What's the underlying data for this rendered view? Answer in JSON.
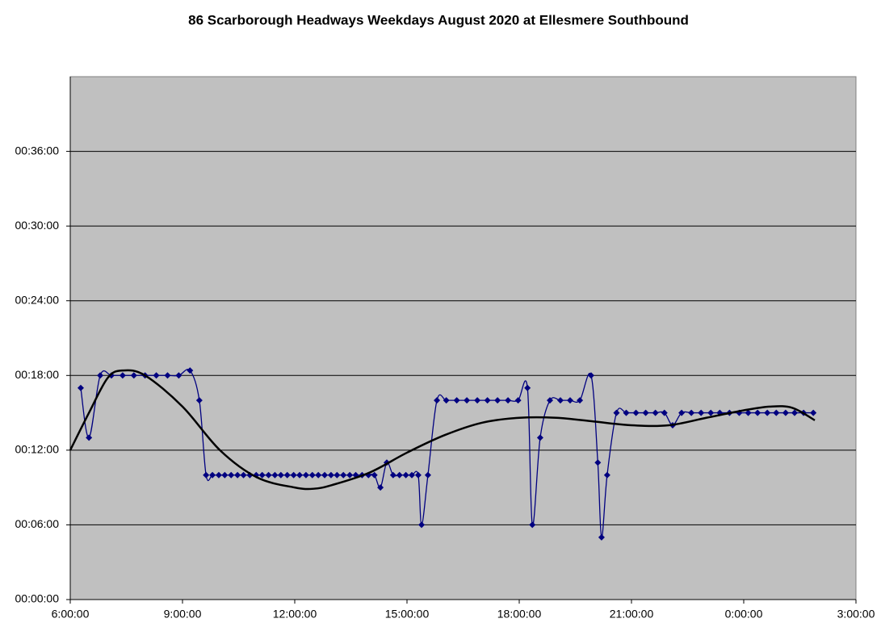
{
  "chart_data": {
    "type": "line",
    "title": "86 Scarborough Headways Weekdays August 2020 at Ellesmere Southbound",
    "xlim": [
      6,
      27
    ],
    "xticks": [
      {
        "value": 6,
        "label": "6:00:00"
      },
      {
        "value": 9,
        "label": "9:00:00"
      },
      {
        "value": 12,
        "label": "12:00:00"
      },
      {
        "value": 15,
        "label": "15:00:00"
      },
      {
        "value": 18,
        "label": "18:00:00"
      },
      {
        "value": 21,
        "label": "21:00:00"
      },
      {
        "value": 24,
        "label": "0:00:00"
      },
      {
        "value": 27,
        "label": "3:00:00"
      }
    ],
    "ylim": [
      0,
      42
    ],
    "yticks": [
      {
        "value": 0,
        "label": "00:00:00"
      },
      {
        "value": 6,
        "label": "00:06:00"
      },
      {
        "value": 12,
        "label": "00:12:00"
      },
      {
        "value": 18,
        "label": "00:18:00"
      },
      {
        "value": 24,
        "label": "00:24:00"
      },
      {
        "value": 30,
        "label": "00:30:00"
      },
      {
        "value": 36,
        "label": "00:36:00"
      }
    ],
    "grid": true,
    "smooth": true,
    "series": [
      {
        "color": "#000080",
        "marker": "diamond",
        "x": [
          6.28,
          6.5,
          6.8,
          7.1,
          7.4,
          7.7,
          8.0,
          8.3,
          8.6,
          8.9,
          9.2,
          9.45,
          9.63,
          9.8,
          9.97,
          10.13,
          10.3,
          10.47,
          10.63,
          10.8,
          10.97,
          11.13,
          11.3,
          11.47,
          11.63,
          11.8,
          11.97,
          12.13,
          12.3,
          12.47,
          12.63,
          12.8,
          12.97,
          13.13,
          13.3,
          13.47,
          13.63,
          13.8,
          13.97,
          14.13,
          14.29,
          14.46,
          14.63,
          14.8,
          14.97,
          15.13,
          15.3,
          15.39,
          15.56,
          15.8,
          16.05,
          16.33,
          16.6,
          16.88,
          17.15,
          17.42,
          17.7,
          17.97,
          18.22,
          18.35,
          18.56,
          18.82,
          19.1,
          19.36,
          19.62,
          19.92,
          20.1,
          20.2,
          20.35,
          20.6,
          20.86,
          21.12,
          21.38,
          21.64,
          21.88,
          22.1,
          22.34,
          22.6,
          22.86,
          23.12,
          23.36,
          23.62,
          23.88,
          24.12,
          24.37,
          24.63,
          24.87,
          25.12,
          25.36,
          25.6,
          25.86
        ],
        "values": [
          17,
          13,
          18,
          18,
          18,
          18,
          18,
          18,
          18,
          18,
          18.4,
          16,
          10,
          10,
          10,
          10,
          10,
          10,
          10,
          10,
          10,
          10,
          10,
          10,
          10,
          10,
          10,
          10,
          10,
          10,
          10,
          10,
          10,
          10,
          10,
          10,
          10,
          10,
          10,
          10,
          9,
          11,
          10,
          10,
          10,
          10,
          10,
          6,
          10,
          16,
          16,
          16,
          16,
          16,
          16,
          16,
          16,
          16,
          17,
          6,
          13,
          16,
          16,
          16,
          16,
          18,
          11,
          5,
          10,
          15,
          15,
          15,
          15,
          15,
          15,
          14,
          15,
          15,
          15,
          15,
          15,
          15,
          15,
          15,
          15,
          15,
          15,
          15,
          15,
          15,
          15
        ]
      },
      {
        "color": "#000000",
        "marker": "none",
        "x": [
          6,
          6.5,
          7,
          7.4,
          8,
          9,
          10,
          11,
          12,
          12.5,
          13,
          14,
          15,
          16,
          17,
          18,
          19,
          20,
          21,
          22,
          23,
          24,
          24.7,
          25.3,
          25.9
        ],
        "values": [
          12,
          15,
          17.8,
          18.4,
          18,
          15.5,
          12,
          9.8,
          9,
          8.9,
          9.2,
          10.2,
          11.8,
          13.2,
          14.2,
          14.6,
          14.6,
          14.3,
          14,
          14,
          14.6,
          15.2,
          15.5,
          15.4,
          14.4
        ]
      }
    ]
  }
}
